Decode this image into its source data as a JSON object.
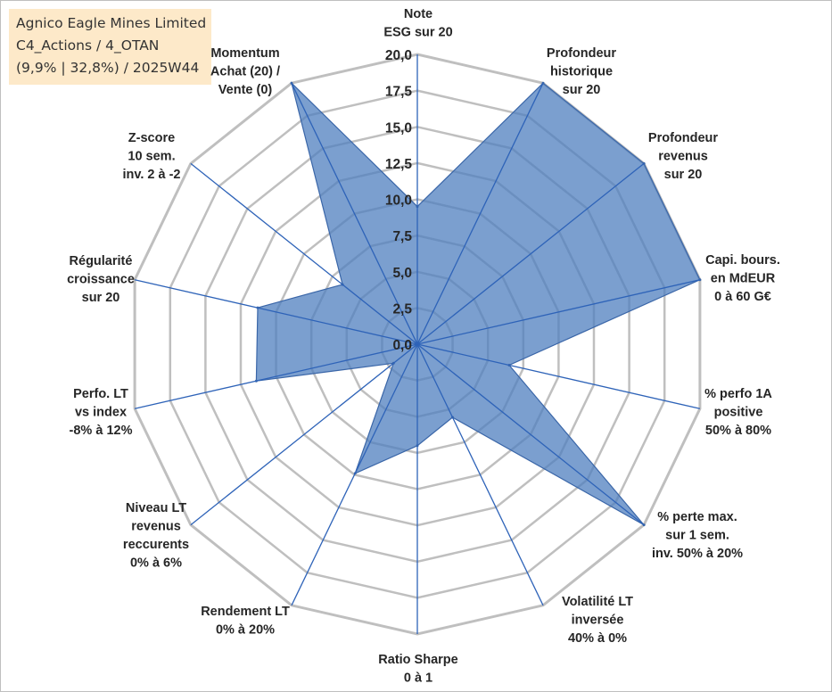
{
  "info_box": {
    "line1": "Agnico Eagle Mines Limited",
    "line2": "C4_Actions / 4_OTAN",
    "line3": "(9,9% | 32,8%) / 2025W44"
  },
  "colors": {
    "fill": "#4f7fbf",
    "fill_opacity": 0.75,
    "spoke": "#2e63b8",
    "grid": "#bfbfbf",
    "outline": "#3a66a8"
  },
  "chart_data": {
    "type": "radar",
    "rmin": 0,
    "rmax": 20,
    "ticks": [
      "0,0",
      "2,5",
      "5,0",
      "7,5",
      "10,0",
      "12,5",
      "15,0",
      "17,5",
      "20,0"
    ],
    "tick_values": [
      0,
      2.5,
      5,
      7.5,
      10,
      12.5,
      15,
      17.5,
      20
    ],
    "grid": true,
    "categories": [
      "Note ESG sur 20",
      "Profondeur historique sur 20",
      "Profondeur revenus sur 20",
      "Capi. bours. en MdEUR 0 à 60 G€",
      "% perfo 1A positive 50% à 80%",
      "% perte max. sur 1 sem. inv. 50% à 20%",
      "Volatilité LT inversée 40% à 0%",
      "Ratio Sharpe 0 à 1",
      "Rendement LT 0% à 20%",
      "Niveau LT revenus reccurents 0% à 6%",
      "Perfo. LT vs index -8% à 12%",
      "Régularité croissance sur 20",
      "Z-score 10 sem. inv. 2 à -2",
      "Momentum Achat (20) / Vente (0)"
    ],
    "category_lines": [
      [
        "Note",
        "ESG sur 20"
      ],
      [
        "Profondeur",
        "historique",
        "sur 20"
      ],
      [
        "Profondeur",
        "revenus",
        "sur 20"
      ],
      [
        "Capi. bours.",
        "en MdEUR",
        "0 à 60 G€"
      ],
      [
        "% perfo 1A",
        "positive",
        "50% à 80%"
      ],
      [
        "% perte max.",
        "sur 1 sem.",
        "inv. 50% à 20%"
      ],
      [
        "Volatilité LT",
        "inversée",
        "40% à 0%"
      ],
      [
        "Ratio Sharpe",
        "0 à 1"
      ],
      [
        "Rendement LT",
        "0% à 20%"
      ],
      [
        "Niveau LT",
        "revenus",
        "reccurents",
        "0% à 6%"
      ],
      [
        "Perfo. LT",
        "vs index",
        "-8% à 12%"
      ],
      [
        "Régularité",
        "croissance",
        "sur 20"
      ],
      [
        "Z-score",
        "10 sem.",
        "inv. 2 à -2"
      ],
      [
        "Momentum",
        "Achat (20) /",
        "Vente (0)"
      ]
    ],
    "series": [
      {
        "values": [
          9.5,
          20,
          20,
          20,
          6.5,
          20,
          5.6,
          7.0,
          9.9,
          2.1,
          11.4,
          11.3,
          6.6,
          20
        ]
      }
    ]
  }
}
